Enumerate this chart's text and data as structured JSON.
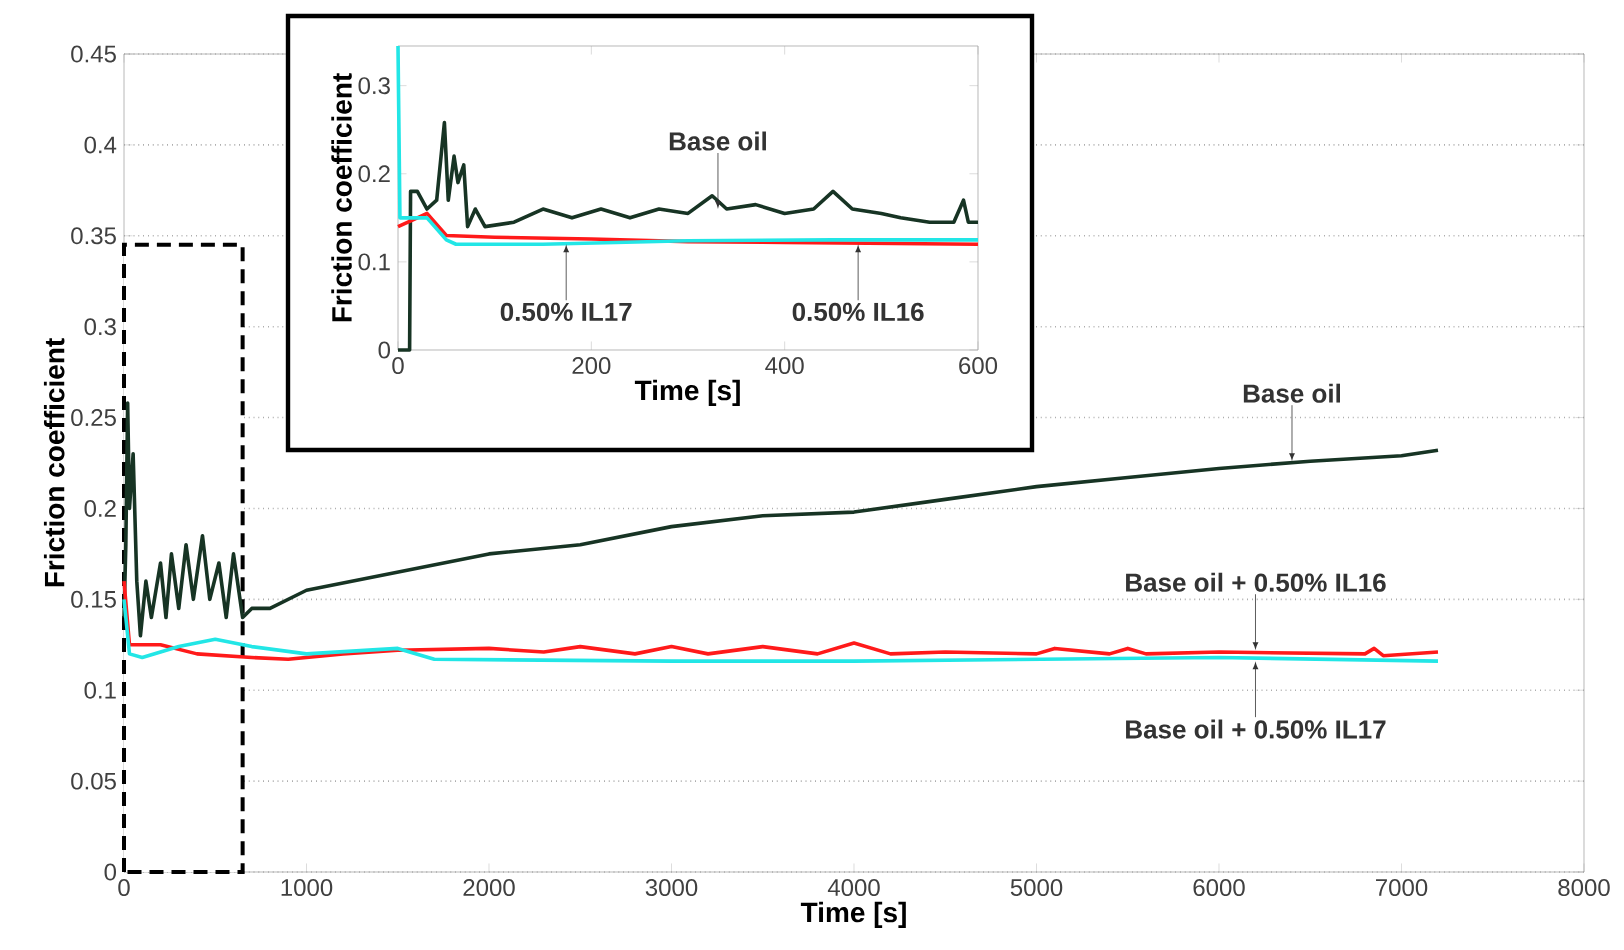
{
  "chart_data": [
    {
      "type": "line",
      "xlabel": "Time [s]",
      "ylabel": "Friction coefficient",
      "xlim": [
        0,
        8000
      ],
      "ylim": [
        0,
        0.45
      ],
      "xticks": [
        0,
        1000,
        2000,
        3000,
        4000,
        5000,
        6000,
        7000,
        8000
      ],
      "yticks": [
        0,
        0.05,
        0.1,
        0.15,
        0.2,
        0.25,
        0.3,
        0.35,
        0.4,
        0.45
      ],
      "grid": "y",
      "bands": [
        {
          "axis": "x",
          "from": 0,
          "to": 650,
          "color": "#ffffff"
        }
      ],
      "series": [
        {
          "color": "#173424",
          "x": [
            0,
            10,
            20,
            30,
            50,
            70,
            90,
            120,
            150,
            200,
            230,
            260,
            300,
            340,
            380,
            430,
            470,
            520,
            560,
            600,
            650,
            700,
            800,
            1000,
            1500,
            2000,
            2500,
            3000,
            3500,
            4000,
            4500,
            5000,
            5500,
            6000,
            6500,
            7000,
            7200
          ],
          "values": [
            0.14,
            0.18,
            0.258,
            0.2,
            0.23,
            0.16,
            0.13,
            0.16,
            0.14,
            0.17,
            0.14,
            0.175,
            0.145,
            0.18,
            0.15,
            0.185,
            0.15,
            0.17,
            0.14,
            0.175,
            0.14,
            0.145,
            0.145,
            0.155,
            0.165,
            0.175,
            0.18,
            0.19,
            0.196,
            0.198,
            0.205,
            0.212,
            0.217,
            0.222,
            0.226,
            0.229,
            0.232
          ]
        },
        {
          "color": "#ff1a1a",
          "x": [
            0,
            30,
            200,
            400,
            700,
            900,
            1200,
            1500,
            2000,
            2300,
            2500,
            2800,
            3000,
            3200,
            3500,
            3800,
            4000,
            4200,
            4500,
            5000,
            5100,
            5400,
            5500,
            5600,
            6000,
            6800,
            6850,
            6900,
            7200
          ],
          "values": [
            0.16,
            0.125,
            0.125,
            0.12,
            0.118,
            0.117,
            0.12,
            0.122,
            0.123,
            0.121,
            0.124,
            0.12,
            0.124,
            0.12,
            0.124,
            0.12,
            0.126,
            0.12,
            0.121,
            0.12,
            0.123,
            0.12,
            0.123,
            0.12,
            0.121,
            0.12,
            0.123,
            0.119,
            0.121
          ]
        },
        {
          "color": "#22e6e6",
          "x": [
            0,
            30,
            100,
            300,
            500,
            700,
            1000,
            1500,
            1700,
            3000,
            4000,
            5000,
            6000,
            7200
          ],
          "values": [
            0.15,
            0.12,
            0.118,
            0.124,
            0.128,
            0.124,
            0.12,
            0.123,
            0.117,
            0.116,
            0.116,
            0.117,
            0.118,
            0.116
          ]
        }
      ],
      "annotations": [
        {
          "text": "Base oil",
          "x": 6400,
          "y": 0.226
        },
        {
          "text": "Base oil + 0.50% IL16",
          "x": 6200,
          "y": 0.122
        },
        {
          "text": "Base oil + 0.50% IL17",
          "x": 6200,
          "y": 0.116
        }
      ]
    },
    {
      "type": "line",
      "xlabel": "Time [s]",
      "ylabel": "Friction coefficient",
      "xlim": [
        0,
        600
      ],
      "ylim": [
        0,
        0.345
      ],
      "xticks": [
        0,
        200,
        400,
        600
      ],
      "yticks": [
        0,
        0.1,
        0.2,
        0.3
      ],
      "series": [
        {
          "color": "#173424",
          "x": [
            0,
            12,
            13,
            20,
            30,
            40,
            48,
            52,
            58,
            62,
            68,
            72,
            80,
            90,
            120,
            150,
            180,
            210,
            240,
            270,
            300,
            325,
            340,
            370,
            400,
            430,
            450,
            470,
            500,
            520,
            550,
            575,
            585,
            590,
            600
          ],
          "values": [
            0,
            0,
            0.18,
            0.18,
            0.16,
            0.17,
            0.258,
            0.17,
            0.22,
            0.19,
            0.21,
            0.14,
            0.16,
            0.14,
            0.145,
            0.16,
            0.15,
            0.16,
            0.15,
            0.16,
            0.155,
            0.175,
            0.16,
            0.165,
            0.155,
            0.16,
            0.18,
            0.16,
            0.155,
            0.15,
            0.145,
            0.145,
            0.17,
            0.145,
            0.145
          ]
        },
        {
          "color": "#ff1a1a",
          "x": [
            0,
            20,
            30,
            50,
            100,
            200,
            300,
            400,
            600
          ],
          "values": [
            0.14,
            0.15,
            0.155,
            0.13,
            0.128,
            0.126,
            0.123,
            0.122,
            0.12
          ]
        },
        {
          "color": "#22e6e6",
          "x": [
            0,
            2,
            20,
            30,
            50,
            60,
            150,
            300,
            450,
            600
          ],
          "values": [
            0.345,
            0.15,
            0.15,
            0.15,
            0.125,
            0.12,
            0.12,
            0.124,
            0.125,
            0.125
          ]
        }
      ],
      "annotations": [
        {
          "text": "Base oil",
          "x": 331,
          "y": 0.16
        },
        {
          "text": "0.50% IL17",
          "x": 174,
          "y": 0.12
        },
        {
          "text": "0.50% IL16",
          "x": 476,
          "y": 0.12
        }
      ]
    }
  ]
}
